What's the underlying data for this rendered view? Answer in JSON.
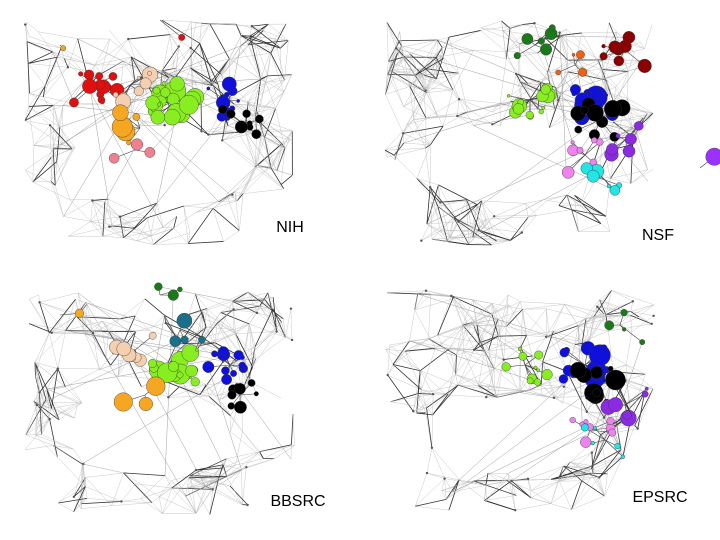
{
  "panels": [
    {
      "label": "NIH"
    },
    {
      "label": "NSF"
    },
    {
      "label": "BBSRC"
    },
    {
      "label": "EPSRC"
    }
  ]
}
